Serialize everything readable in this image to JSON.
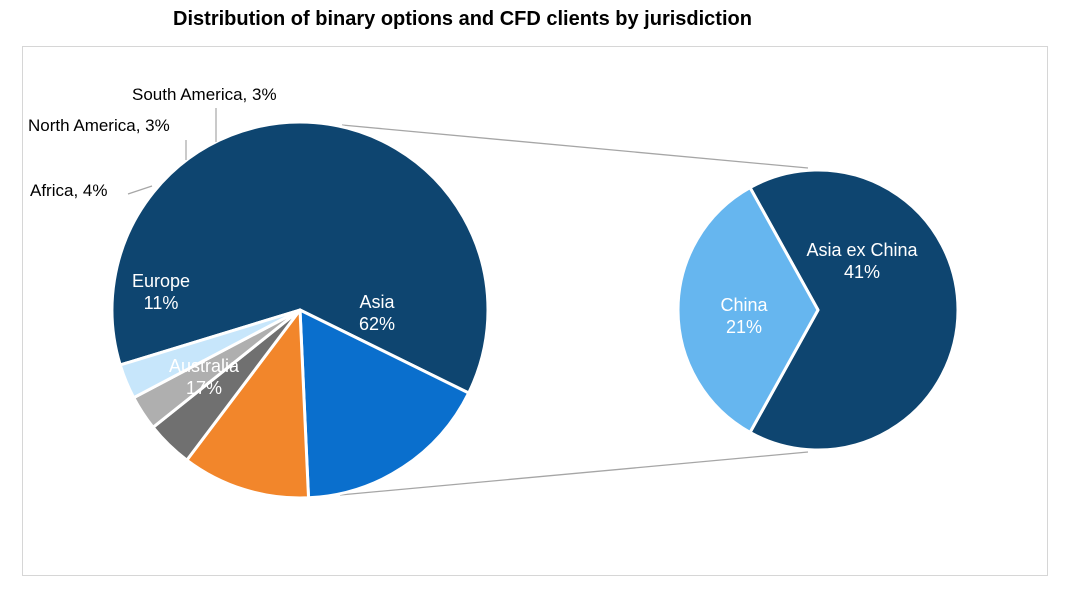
{
  "title": "Distribution of binary options and CFD clients by jurisdiction",
  "chart_data": {
    "type": "pie",
    "subtype": "pie-of-pie",
    "title": "Distribution of binary options and CFD clients by jurisdiction",
    "main_pie": [
      {
        "label": "Asia",
        "value_text": "62%",
        "value": 62,
        "color": "#0e4570",
        "label_color": "#ffffff",
        "label_style": "inside"
      },
      {
        "label": "Australia",
        "value_text": "17%",
        "value": 17,
        "color": "#0a6fcd",
        "label_color": "#ffffff",
        "label_style": "inside"
      },
      {
        "label": "Europe",
        "value_text": "11%",
        "value": 11,
        "color": "#f2862b",
        "label_color": "#ffffff",
        "label_style": "inside"
      },
      {
        "label": "Africa",
        "value_text": "4%",
        "value": 4,
        "color": "#707070",
        "label_color": "#000000",
        "label_style": "outside"
      },
      {
        "label": "North America",
        "value_text": "3%",
        "value": 3,
        "color": "#afafaf",
        "label_color": "#000000",
        "label_style": "outside"
      },
      {
        "label": "South America",
        "value_text": "3%",
        "value": 3,
        "color": "#c7e6fb",
        "label_color": "#000000",
        "label_style": "outside"
      }
    ],
    "secondary_pie": {
      "breakdown_of": "Asia",
      "slices": [
        {
          "label": "Asia ex China",
          "value_text": "41%",
          "value": 41,
          "color": "#0e4570",
          "label_color": "#ffffff"
        },
        {
          "label": "China",
          "value_text": "21%",
          "value": 21,
          "color": "#66b6ef",
          "label_color": "#ffffff"
        }
      ]
    },
    "connector_color": "#a6a6a6",
    "legend": "none"
  }
}
